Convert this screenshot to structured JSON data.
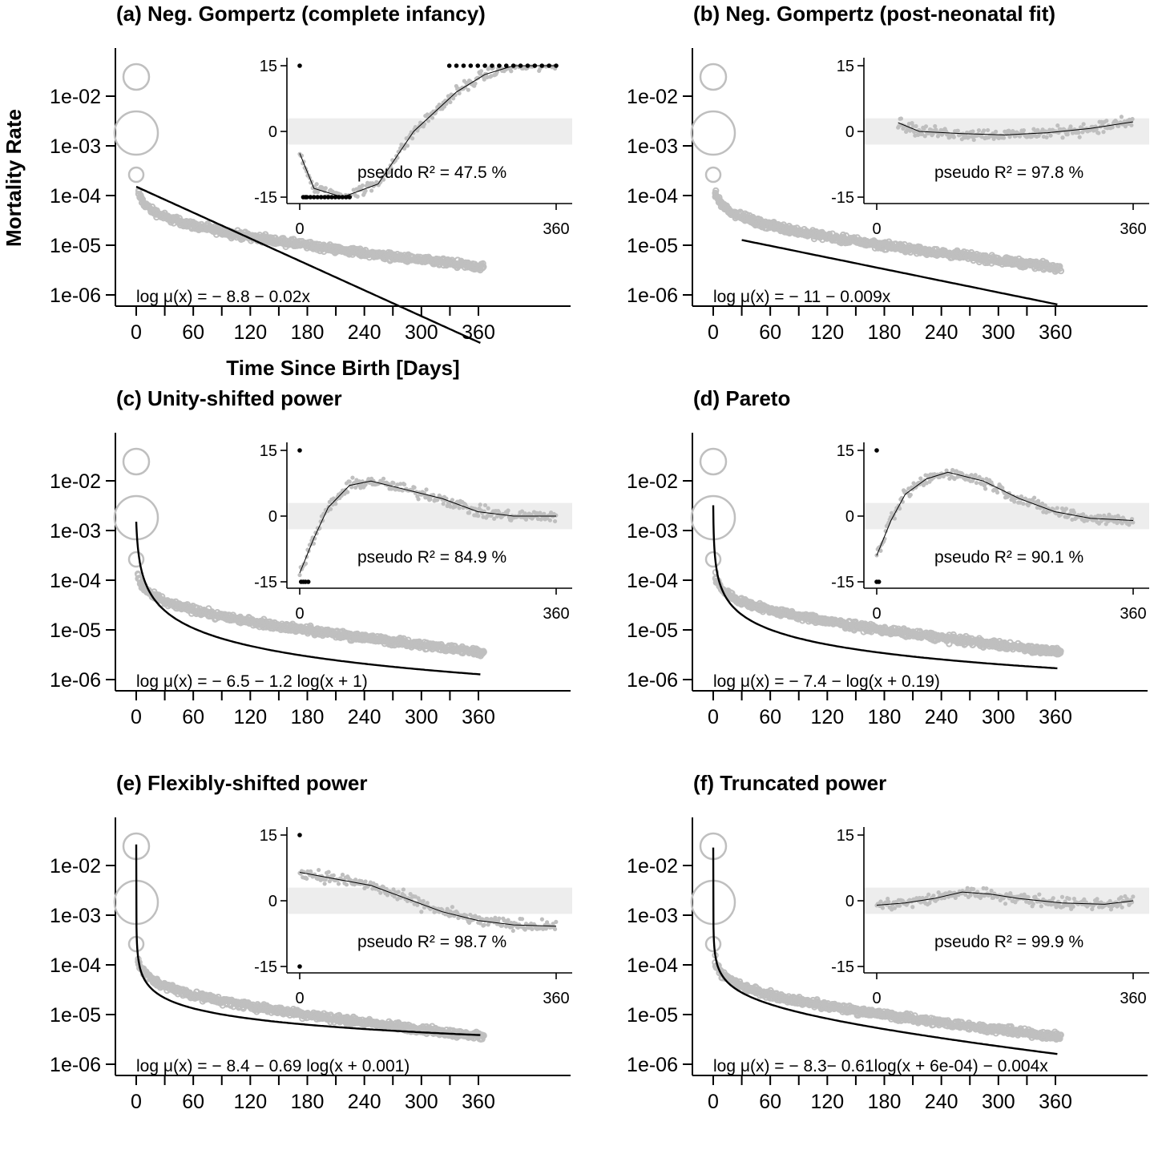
{
  "figure": {
    "ylabel": "Mortality Rate",
    "xlabel": "Time Since Birth [Days]",
    "colors": {
      "points": "#bfbfbf",
      "fit": "#000000",
      "band": "#ededed",
      "clipped": "#000000"
    }
  },
  "chart_data": [
    {
      "type": "scatter",
      "title": "(a) Neg. Gompertz (complete infancy)",
      "x_ticks": [
        0,
        60,
        120,
        180,
        240,
        300,
        360
      ],
      "y_ticks": [
        "1e-02",
        "1e-03",
        "1e-04",
        "1e-05",
        "1e-06"
      ],
      "y_scale": "log",
      "xlim": [
        0,
        365
      ],
      "ylim": [
        5e-07,
        0.1
      ],
      "observed_anchor_log10": {
        "day0": -1.6,
        "day1": -2.8,
        "day2": -3.6,
        "day5": -3.9,
        "day30": -4.5,
        "day90": -4.85,
        "day180": -5.25,
        "day270": -5.55,
        "day365": -5.8
      },
      "fit": {
        "intercept": -8.8,
        "slope": -0.02,
        "shape": "gompertz"
      },
      "equation": "log μ(x) = − 8.8 − 0.02x",
      "inset": {
        "x_ticks": [
          0,
          360
        ],
        "y_ticks": [
          15,
          0,
          -15
        ],
        "band": [
          -3,
          3
        ],
        "r2_label": "pseudo  R² = 47.5  %",
        "residual_curve": [
          [
            0,
            -5
          ],
          [
            20,
            -13
          ],
          [
            60,
            -15
          ],
          [
            110,
            -12
          ],
          [
            160,
            0
          ],
          [
            220,
            9
          ],
          [
            260,
            13
          ],
          [
            300,
            15
          ],
          [
            360,
            15
          ]
        ],
        "clipped": [
          [
            0,
            15
          ],
          [
            5,
            -15
          ],
          [
            8,
            -15
          ],
          [
            10,
            -15
          ],
          [
            15,
            -15
          ],
          [
            20,
            -15
          ],
          [
            25,
            -15
          ],
          [
            30,
            -15
          ],
          [
            35,
            -15
          ],
          [
            40,
            -15
          ],
          [
            45,
            -15
          ],
          [
            50,
            -15
          ],
          [
            55,
            -15
          ],
          [
            60,
            -15
          ],
          [
            65,
            -15
          ],
          [
            70,
            -15
          ],
          [
            210,
            15
          ],
          [
            220,
            15
          ],
          [
            230,
            15
          ],
          [
            240,
            15
          ],
          [
            250,
            15
          ],
          [
            260,
            15
          ],
          [
            270,
            15
          ],
          [
            280,
            15
          ],
          [
            290,
            15
          ],
          [
            300,
            15
          ],
          [
            310,
            15
          ],
          [
            320,
            15
          ],
          [
            330,
            15
          ],
          [
            340,
            15
          ],
          [
            350,
            15
          ],
          [
            360,
            15
          ]
        ]
      }
    },
    {
      "type": "scatter",
      "title": "(b) Neg. Gompertz (post-neonatal fit)",
      "x_ticks": [
        0,
        60,
        120,
        180,
        240,
        300,
        360
      ],
      "y_ticks": [
        "1e-02",
        "1e-03",
        "1e-04",
        "1e-05",
        "1e-06"
      ],
      "y_scale": "log",
      "xlim": [
        0,
        365
      ],
      "ylim": [
        5e-07,
        0.1
      ],
      "fit": {
        "intercept": -11,
        "slope": -0.009,
        "shape": "gompertz_post"
      },
      "equation": "log μ(x) = − 11 − 0.009x",
      "inset": {
        "x_ticks": [
          0,
          360
        ],
        "y_ticks": [
          15,
          0,
          -15
        ],
        "band": [
          -3,
          3
        ],
        "r2_label": "pseudo  R² = 97.8  %",
        "residual_curve": [
          [
            30,
            2
          ],
          [
            60,
            0
          ],
          [
            120,
            -0.5
          ],
          [
            180,
            -0.8
          ],
          [
            240,
            -0.3
          ],
          [
            300,
            0.7
          ],
          [
            360,
            2.2
          ]
        ],
        "clipped": []
      }
    },
    {
      "type": "scatter",
      "title": "(c) Unity-shifted power",
      "x_ticks": [
        0,
        60,
        120,
        180,
        240,
        300,
        360
      ],
      "y_ticks": [
        "1e-02",
        "1e-03",
        "1e-04",
        "1e-05",
        "1e-06"
      ],
      "y_scale": "log",
      "xlim": [
        0,
        365
      ],
      "ylim": [
        5e-07,
        0.1
      ],
      "fit": {
        "a": -6.5,
        "b": -1.2,
        "c": 1,
        "shape": "power"
      },
      "equation": "log μ(x) = − 6.5 − 1.2 log(x + 1)",
      "inset": {
        "x_ticks": [
          0,
          360
        ],
        "y_ticks": [
          15,
          0,
          -15
        ],
        "band": [
          -3,
          3
        ],
        "r2_label": "pseudo  R² = 84.9  %",
        "residual_curve": [
          [
            0,
            -13
          ],
          [
            20,
            -5
          ],
          [
            40,
            2
          ],
          [
            70,
            7
          ],
          [
            100,
            8
          ],
          [
            150,
            6
          ],
          [
            200,
            4
          ],
          [
            250,
            1
          ],
          [
            300,
            0
          ],
          [
            360,
            0
          ]
        ],
        "clipped": [
          [
            0,
            15
          ],
          [
            2,
            -15
          ],
          [
            5,
            -15
          ],
          [
            8,
            -15
          ],
          [
            12,
            -15
          ]
        ]
      }
    },
    {
      "type": "scatter",
      "title": "(d) Pareto",
      "x_ticks": [
        0,
        60,
        120,
        180,
        240,
        300,
        360
      ],
      "y_ticks": [
        "1e-02",
        "1e-03",
        "1e-04",
        "1e-05",
        "1e-06"
      ],
      "y_scale": "log",
      "xlim": [
        0,
        365
      ],
      "ylim": [
        5e-07,
        0.1
      ],
      "fit": {
        "a": -7.4,
        "b": -1,
        "c": 0.19,
        "shape": "power"
      },
      "equation": "log μ(x) = − 7.4 − log(x + 0.19)",
      "inset": {
        "x_ticks": [
          0,
          360
        ],
        "y_ticks": [
          15,
          0,
          -15
        ],
        "band": [
          -3,
          3
        ],
        "r2_label": "pseudo  R² = 90.1  %",
        "residual_curve": [
          [
            0,
            -9
          ],
          [
            20,
            -1
          ],
          [
            40,
            5
          ],
          [
            70,
            8.5
          ],
          [
            100,
            10
          ],
          [
            150,
            8
          ],
          [
            200,
            4
          ],
          [
            250,
            1
          ],
          [
            300,
            -0.5
          ],
          [
            360,
            -1
          ]
        ],
        "clipped": [
          [
            0,
            15
          ],
          [
            0,
            -15
          ],
          [
            3,
            -15
          ]
        ]
      }
    },
    {
      "type": "scatter",
      "title": "(e) Flexibly-shifted power",
      "x_ticks": [
        0,
        60,
        120,
        180,
        240,
        300,
        360
      ],
      "y_ticks": [
        "1e-02",
        "1e-03",
        "1e-04",
        "1e-05",
        "1e-06"
      ],
      "y_scale": "log",
      "xlim": [
        0,
        365
      ],
      "ylim": [
        5e-07,
        0.1
      ],
      "fit": {
        "a": -8.4,
        "b": -0.69,
        "c": 0.001,
        "shape": "power"
      },
      "equation": "log μ(x) = − 8.4 − 0.69 log(x + 0.001)",
      "inset": {
        "x_ticks": [
          0,
          360
        ],
        "y_ticks": [
          15,
          0,
          -15
        ],
        "band": [
          -3,
          3
        ],
        "r2_label": "pseudo  R² = 98.7  %",
        "residual_curve": [
          [
            0,
            6.5
          ],
          [
            50,
            5
          ],
          [
            100,
            3.5
          ],
          [
            150,
            0.5
          ],
          [
            200,
            -2.5
          ],
          [
            250,
            -4.5
          ],
          [
            300,
            -5.5
          ],
          [
            360,
            -5.8
          ]
        ],
        "clipped": [
          [
            0,
            15
          ],
          [
            0,
            -15
          ]
        ]
      }
    },
    {
      "type": "scatter",
      "title": "(f) Truncated power",
      "x_ticks": [
        0,
        60,
        120,
        180,
        240,
        300,
        360
      ],
      "y_ticks": [
        "1e-02",
        "1e-03",
        "1e-04",
        "1e-05",
        "1e-06"
      ],
      "y_scale": "log",
      "xlim": [
        0,
        365
      ],
      "ylim": [
        5e-07,
        0.1
      ],
      "fit": {
        "a": -8.3,
        "b": -0.61,
        "c": 0.0006,
        "d": -0.004,
        "shape": "truncated"
      },
      "equation": "log μ(x) = − 8.3− 0.61log(x + 6e-04) − 0.004x",
      "inset": {
        "x_ticks": [
          0,
          360
        ],
        "y_ticks": [
          15,
          0,
          -15
        ],
        "band": [
          -3,
          3
        ],
        "r2_label": "pseudo  R² = 99.9  %",
        "residual_curve": [
          [
            0,
            -1
          ],
          [
            40,
            -0.5
          ],
          [
            80,
            0.5
          ],
          [
            120,
            2
          ],
          [
            160,
            1.5
          ],
          [
            200,
            0.5
          ],
          [
            260,
            -0.5
          ],
          [
            320,
            -0.8
          ],
          [
            360,
            0
          ]
        ],
        "clipped": []
      }
    }
  ]
}
